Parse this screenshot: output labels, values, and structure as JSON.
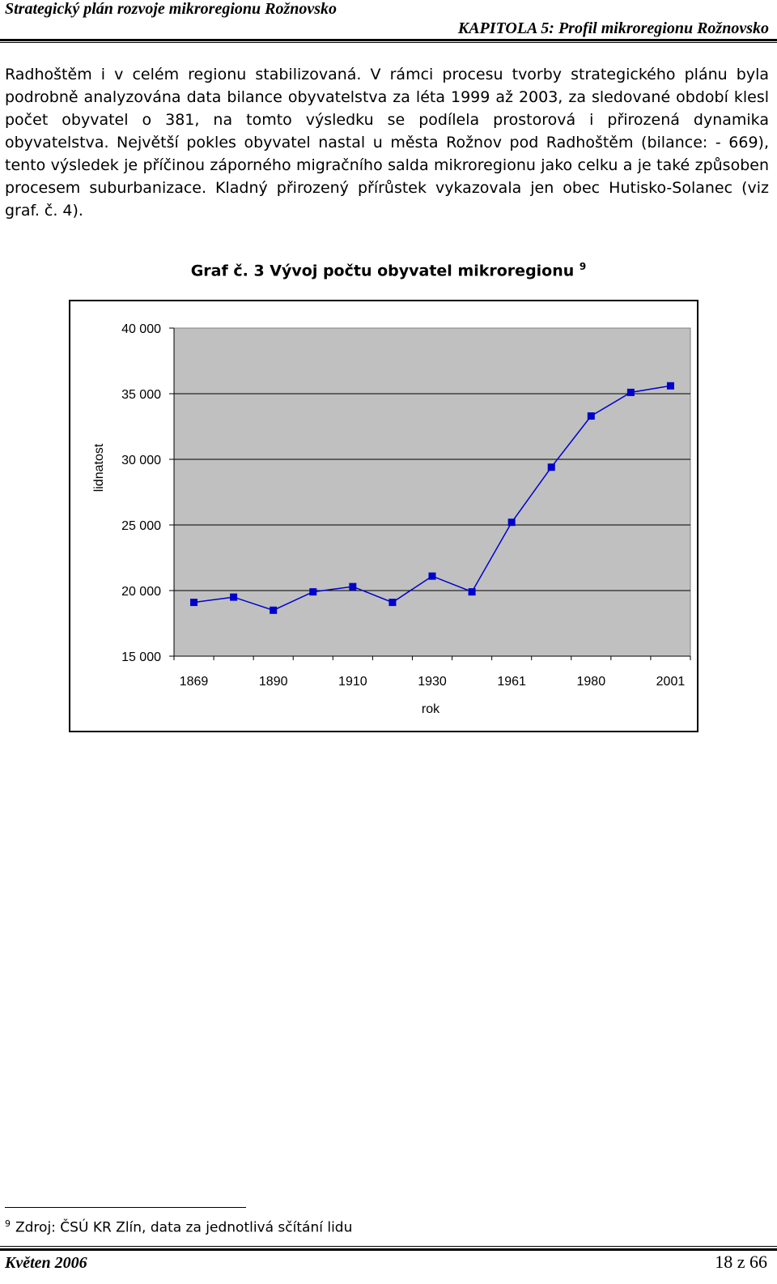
{
  "header": {
    "left": "Strategický plán rozvoje mikroregionu Rožnovsko",
    "right": "KAPITOLA 5: Profil mikroregionu Rožnovsko"
  },
  "body": {
    "paragraph": "Radhoštěm i v celém regionu stabilizovaná. V rámci procesu tvorby strategického plánu byla podrobně analyzována data bilance obyvatelstva za léta 1999 až 2003, za sledované období klesl počet obyvatel o 381, na tomto výsledku se podílela prostorová i přirozená dynamika obyvatelstva. Největší pokles obyvatel nastal u města Rožnov pod Radhoštěm (bilance: - 669), tento výsledek je příčinou záporného migračního salda mikroregionu jako celku a je také způsoben procesem suburbanizace. Kladný přirozený přírůstek vykazovala jen obec Hutisko-Solanec (viz graf. č. 4)."
  },
  "figure": {
    "title": "Graf č. 3  Vývoj počtu obyvatel mikroregionu",
    "footnote_ref": "9"
  },
  "chart_data": {
    "type": "line",
    "title": "",
    "xlabel": "rok",
    "ylabel": "lidnatost",
    "ylim": [
      15000,
      40000
    ],
    "y_ticks": [
      40000,
      35000,
      30000,
      25000,
      20000,
      15000
    ],
    "y_tick_labels": [
      "40 000",
      "35 000",
      "30 000",
      "25 000",
      "20 000",
      "15 000"
    ],
    "x_tick_labels": [
      "1869",
      "1890",
      "1910",
      "1930",
      "1961",
      "1980",
      "2001"
    ],
    "grid": true,
    "plot_background": "#c0c0c0",
    "series_color": "#0000cc",
    "series": [
      {
        "values": [
          19100,
          19500,
          18500,
          19900,
          20300,
          19100,
          21100,
          19900,
          25200,
          29400,
          33300,
          35100,
          35600
        ]
      }
    ]
  },
  "footnote": {
    "number": "9",
    "text": "Zdroj: ČSÚ KR Zlín, data za jednotlivá sčítání lidu"
  },
  "footer": {
    "left": "Květen 2006",
    "right": "18 z 66"
  }
}
